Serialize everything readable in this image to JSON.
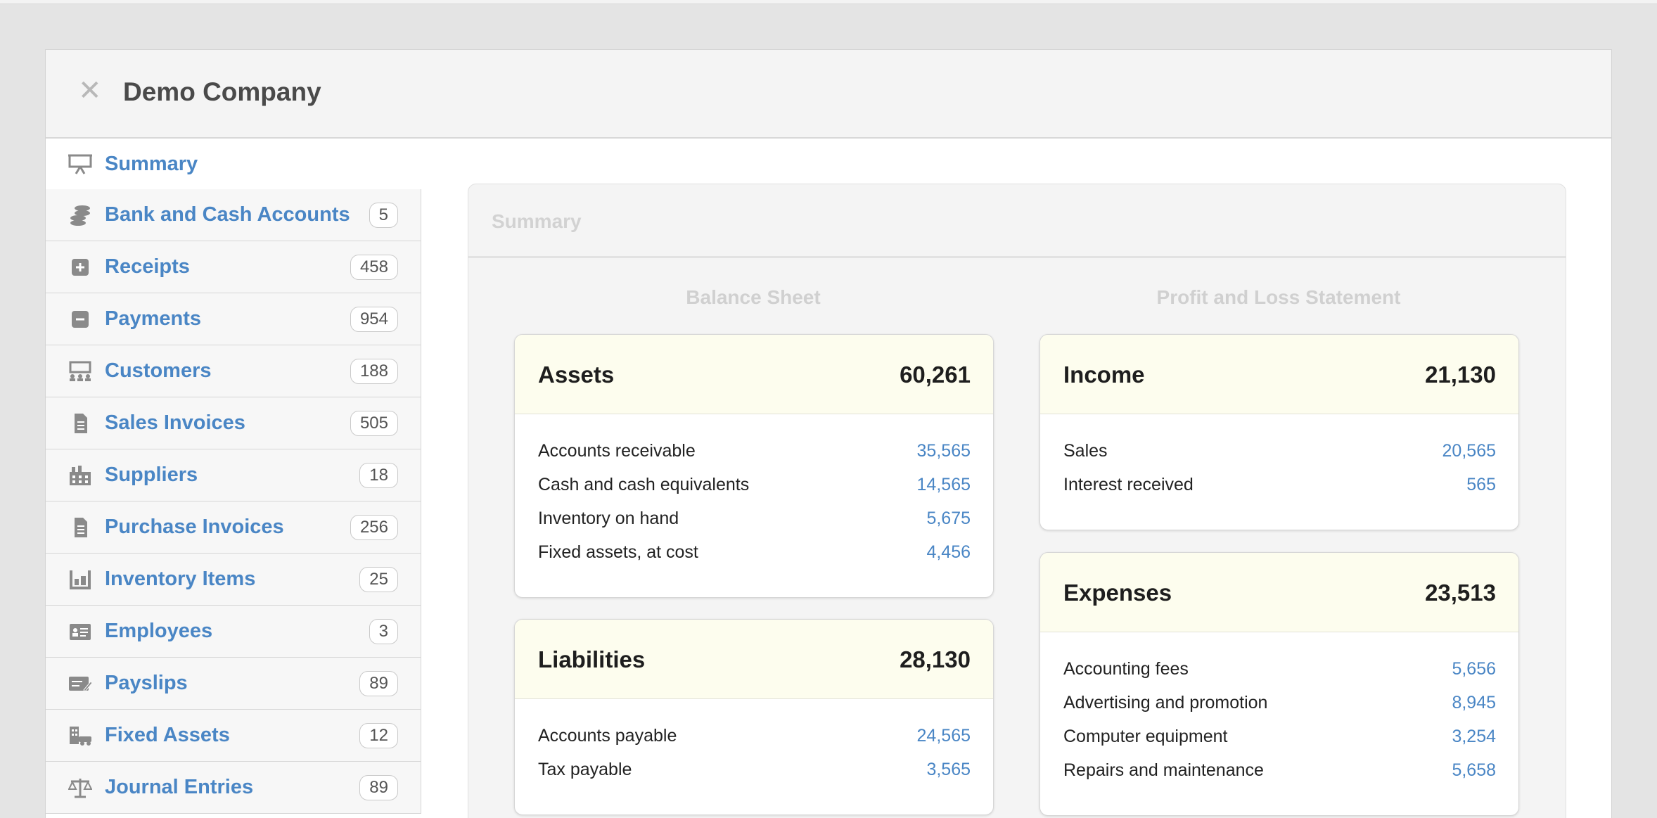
{
  "window": {
    "company": "Demo Company"
  },
  "sidebar": {
    "items": [
      {
        "label": "Summary",
        "icon": "presentation-icon",
        "count": null
      },
      {
        "label": "Bank and Cash Accounts",
        "icon": "coins-icon",
        "count": "5"
      },
      {
        "label": "Receipts",
        "icon": "plus-square-icon",
        "count": "458"
      },
      {
        "label": "Payments",
        "icon": "minus-square-icon",
        "count": "954"
      },
      {
        "label": "Customers",
        "icon": "customers-icon",
        "count": "188"
      },
      {
        "label": "Sales Invoices",
        "icon": "document-icon",
        "count": "505"
      },
      {
        "label": "Suppliers",
        "icon": "building-icon",
        "count": "18"
      },
      {
        "label": "Purchase Invoices",
        "icon": "document-icon",
        "count": "256"
      },
      {
        "label": "Inventory Items",
        "icon": "warehouse-icon",
        "count": "25"
      },
      {
        "label": "Employees",
        "icon": "id-card-icon",
        "count": "3"
      },
      {
        "label": "Payslips",
        "icon": "payslip-icon",
        "count": "89"
      },
      {
        "label": "Fixed Assets",
        "icon": "fixed-assets-icon",
        "count": "12"
      },
      {
        "label": "Journal Entries",
        "icon": "scale-icon",
        "count": "89"
      }
    ]
  },
  "summary": {
    "title": "Summary",
    "balance_sheet_title": "Balance Sheet",
    "pl_title": "Profit and Loss Statement",
    "assets": {
      "name": "Assets",
      "total": "60,261",
      "rows": [
        {
          "label": "Accounts receivable",
          "value": "35,565"
        },
        {
          "label": "Cash and cash equivalents",
          "value": "14,565"
        },
        {
          "label": "Inventory on hand",
          "value": "5,675"
        },
        {
          "label": "Fixed assets, at cost",
          "value": "4,456"
        }
      ]
    },
    "liabilities": {
      "name": "Liabilities",
      "total": "28,130",
      "rows": [
        {
          "label": "Accounts payable",
          "value": "24,565"
        },
        {
          "label": "Tax payable",
          "value": "3,565"
        }
      ]
    },
    "income": {
      "name": "Income",
      "total": "21,130",
      "rows": [
        {
          "label": "Sales",
          "value": "20,565"
        },
        {
          "label": "Interest received",
          "value": "565"
        }
      ]
    },
    "expenses": {
      "name": "Expenses",
      "total": "23,513",
      "rows": [
        {
          "label": "Accounting fees",
          "value": "5,656"
        },
        {
          "label": "Advertising and promotion",
          "value": "8,945"
        },
        {
          "label": "Computer equipment",
          "value": "3,254"
        },
        {
          "label": "Repairs and maintenance",
          "value": "5,658"
        }
      ]
    }
  },
  "colors": {
    "link": "#4a86c5",
    "card_header": "#fdfdee",
    "icon": "#8a8a8a"
  }
}
